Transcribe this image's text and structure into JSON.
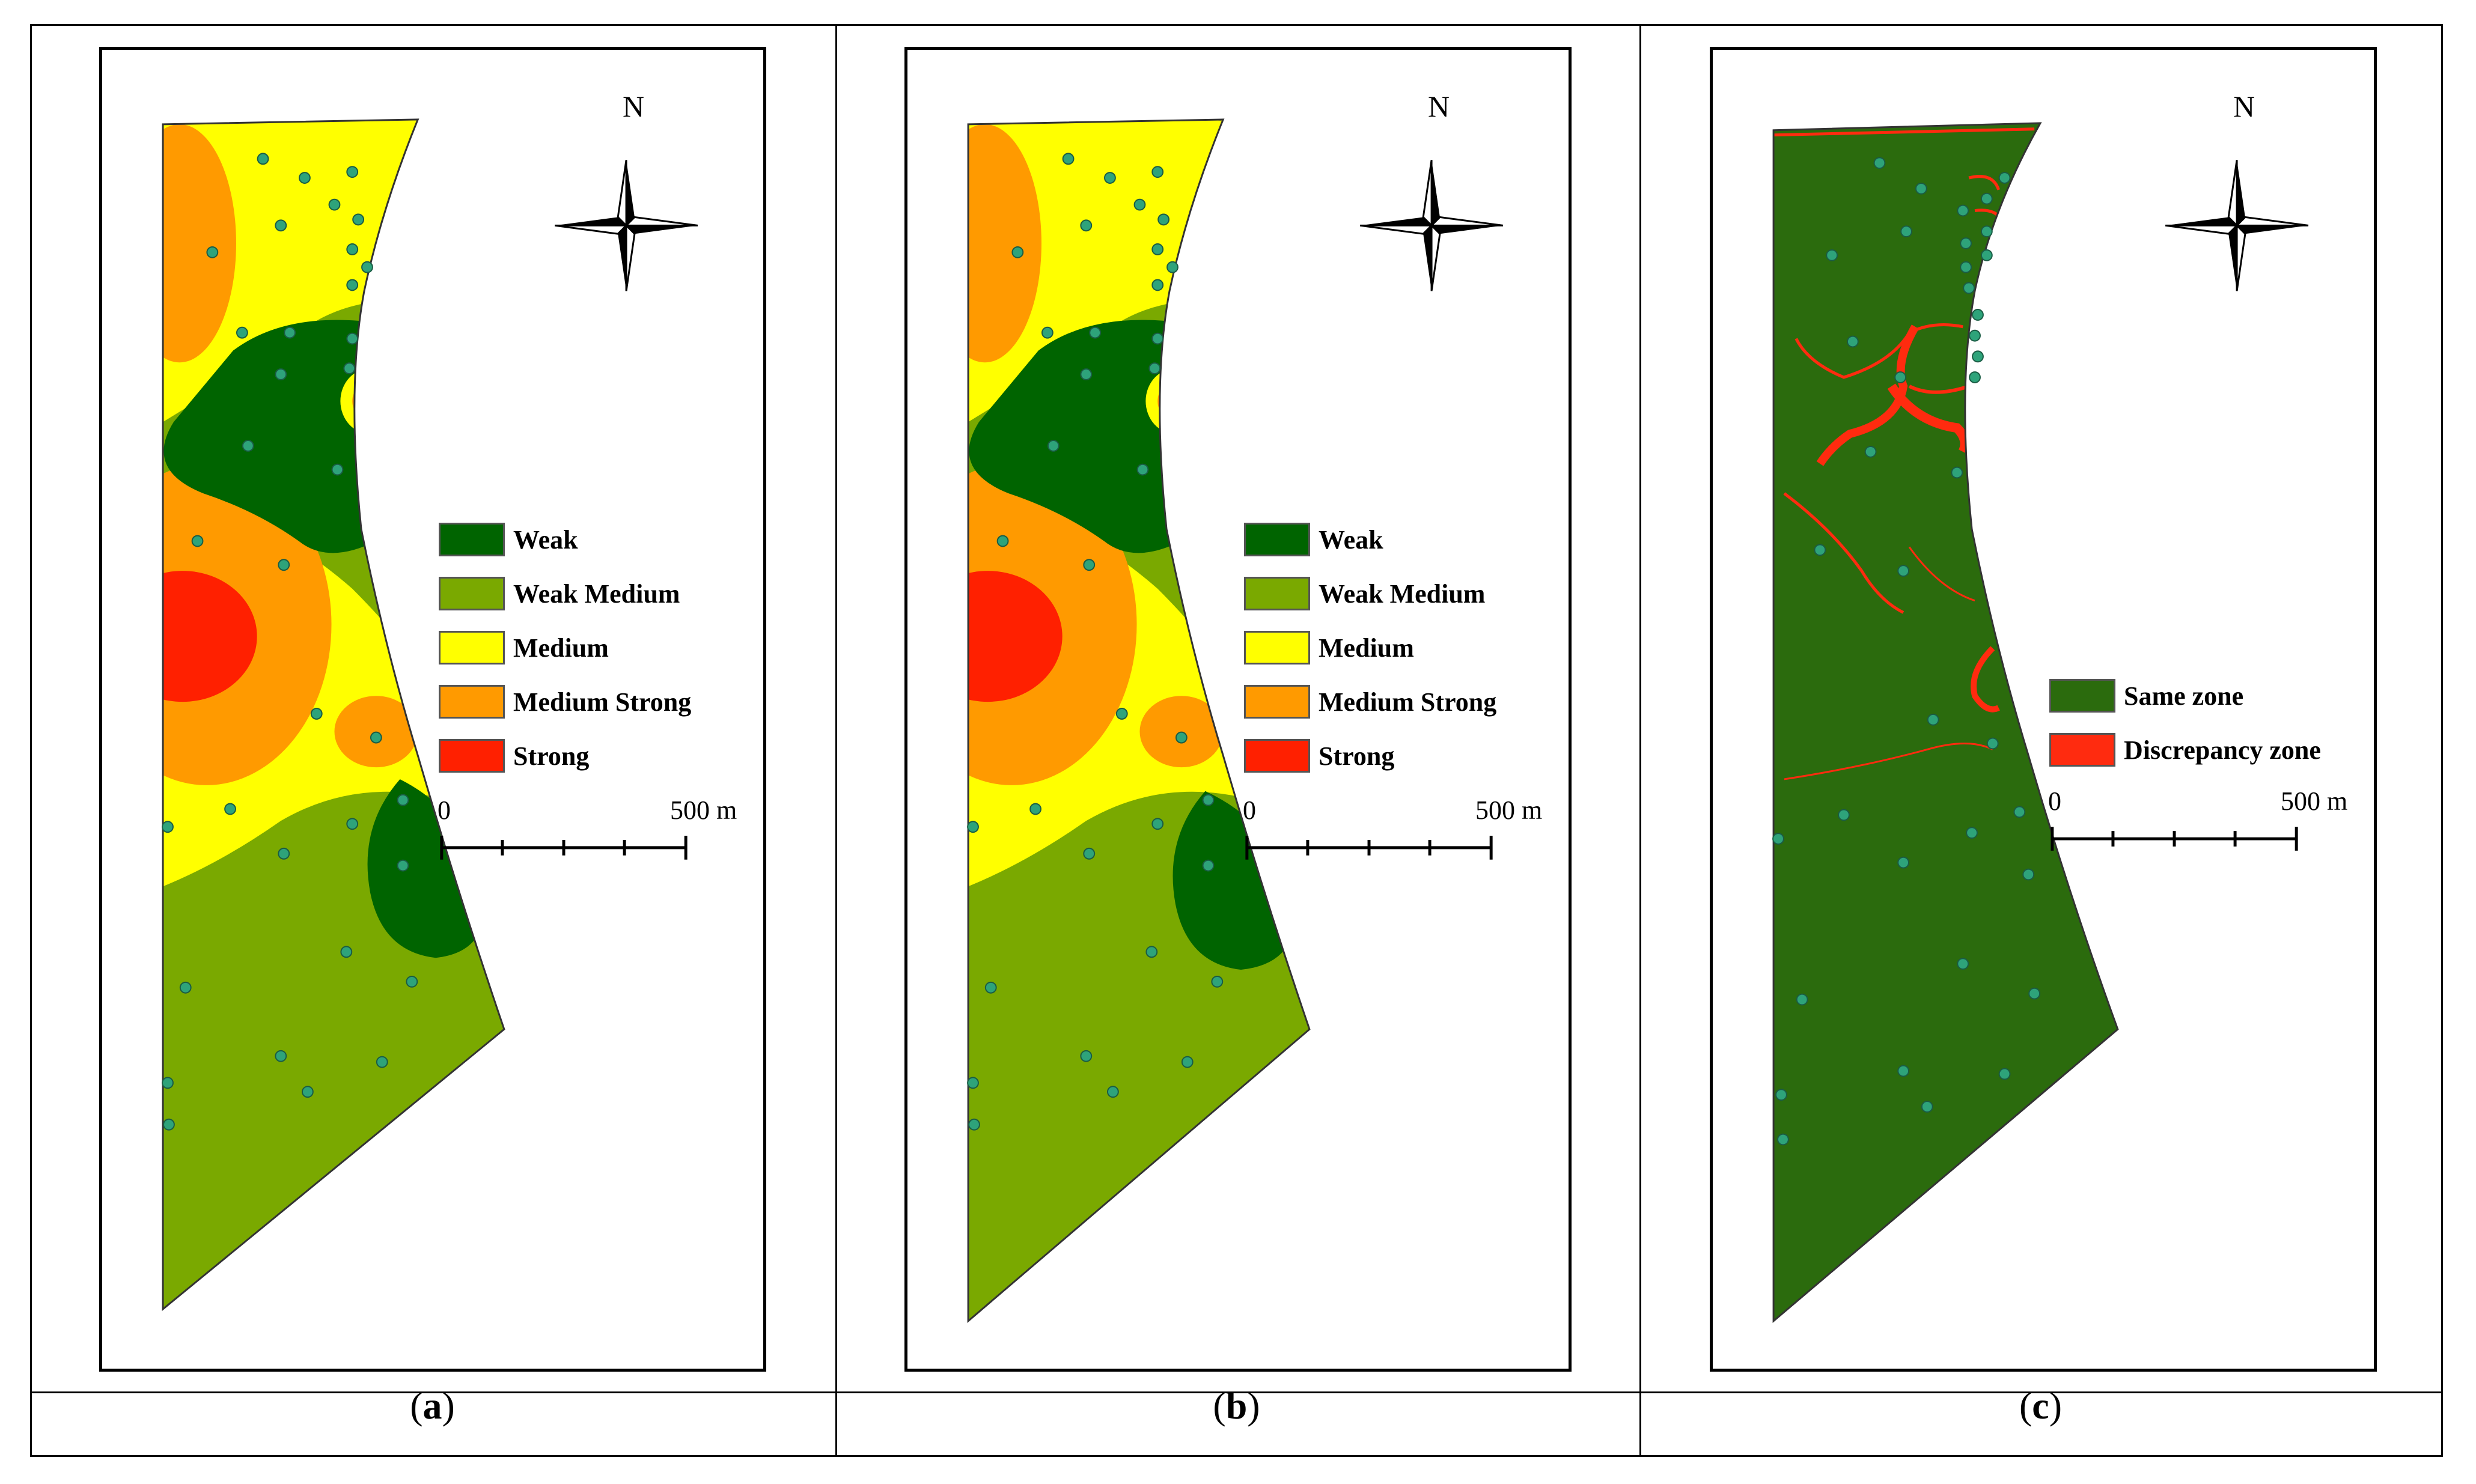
{
  "colors": {
    "weak": "#006400",
    "weak_medium": "#7aa900",
    "medium": "#ffff00",
    "medium_strong": "#ff9a00",
    "strong": "#ff2000",
    "sample_point": "#2ea37a",
    "same_zone": "#2b6b0d",
    "discrepancy_zone": "#ff2b0f"
  },
  "panels": [
    {
      "id": "a",
      "caption_open": "(",
      "caption_letter": "a",
      "caption_close": ")",
      "north": "N",
      "scale": {
        "start": "0",
        "end": "500 m"
      },
      "legend": [
        {
          "label": "Weak",
          "color": "#006400"
        },
        {
          "label": "Weak Medium",
          "color": "#7aa900"
        },
        {
          "label": "Medium",
          "color": "#ffff00"
        },
        {
          "label": "Medium Strong",
          "color": "#ff9a00"
        },
        {
          "label": "Strong",
          "color": "#ff2000"
        }
      ]
    },
    {
      "id": "b",
      "caption_open": "(",
      "caption_letter": "b",
      "caption_close": ")",
      "north": "N",
      "scale": {
        "start": "0",
        "end": "500 m"
      },
      "legend": [
        {
          "label": "Weak",
          "color": "#006400"
        },
        {
          "label": "Weak Medium",
          "color": "#7aa900"
        },
        {
          "label": "Medium",
          "color": "#ffff00"
        },
        {
          "label": "Medium Strong",
          "color": "#ff9a00"
        },
        {
          "label": "Strong",
          "color": "#ff2000"
        }
      ]
    },
    {
      "id": "c",
      "caption_open": "(",
      "caption_letter": "c",
      "caption_close": ")",
      "north": "N",
      "scale": {
        "start": "0",
        "end": "500 m"
      },
      "legend": [
        {
          "label": "Same zone",
          "color": "#2b6b0d"
        },
        {
          "label": "Discrepancy zone",
          "color": "#ff2b0f"
        }
      ]
    }
  ]
}
